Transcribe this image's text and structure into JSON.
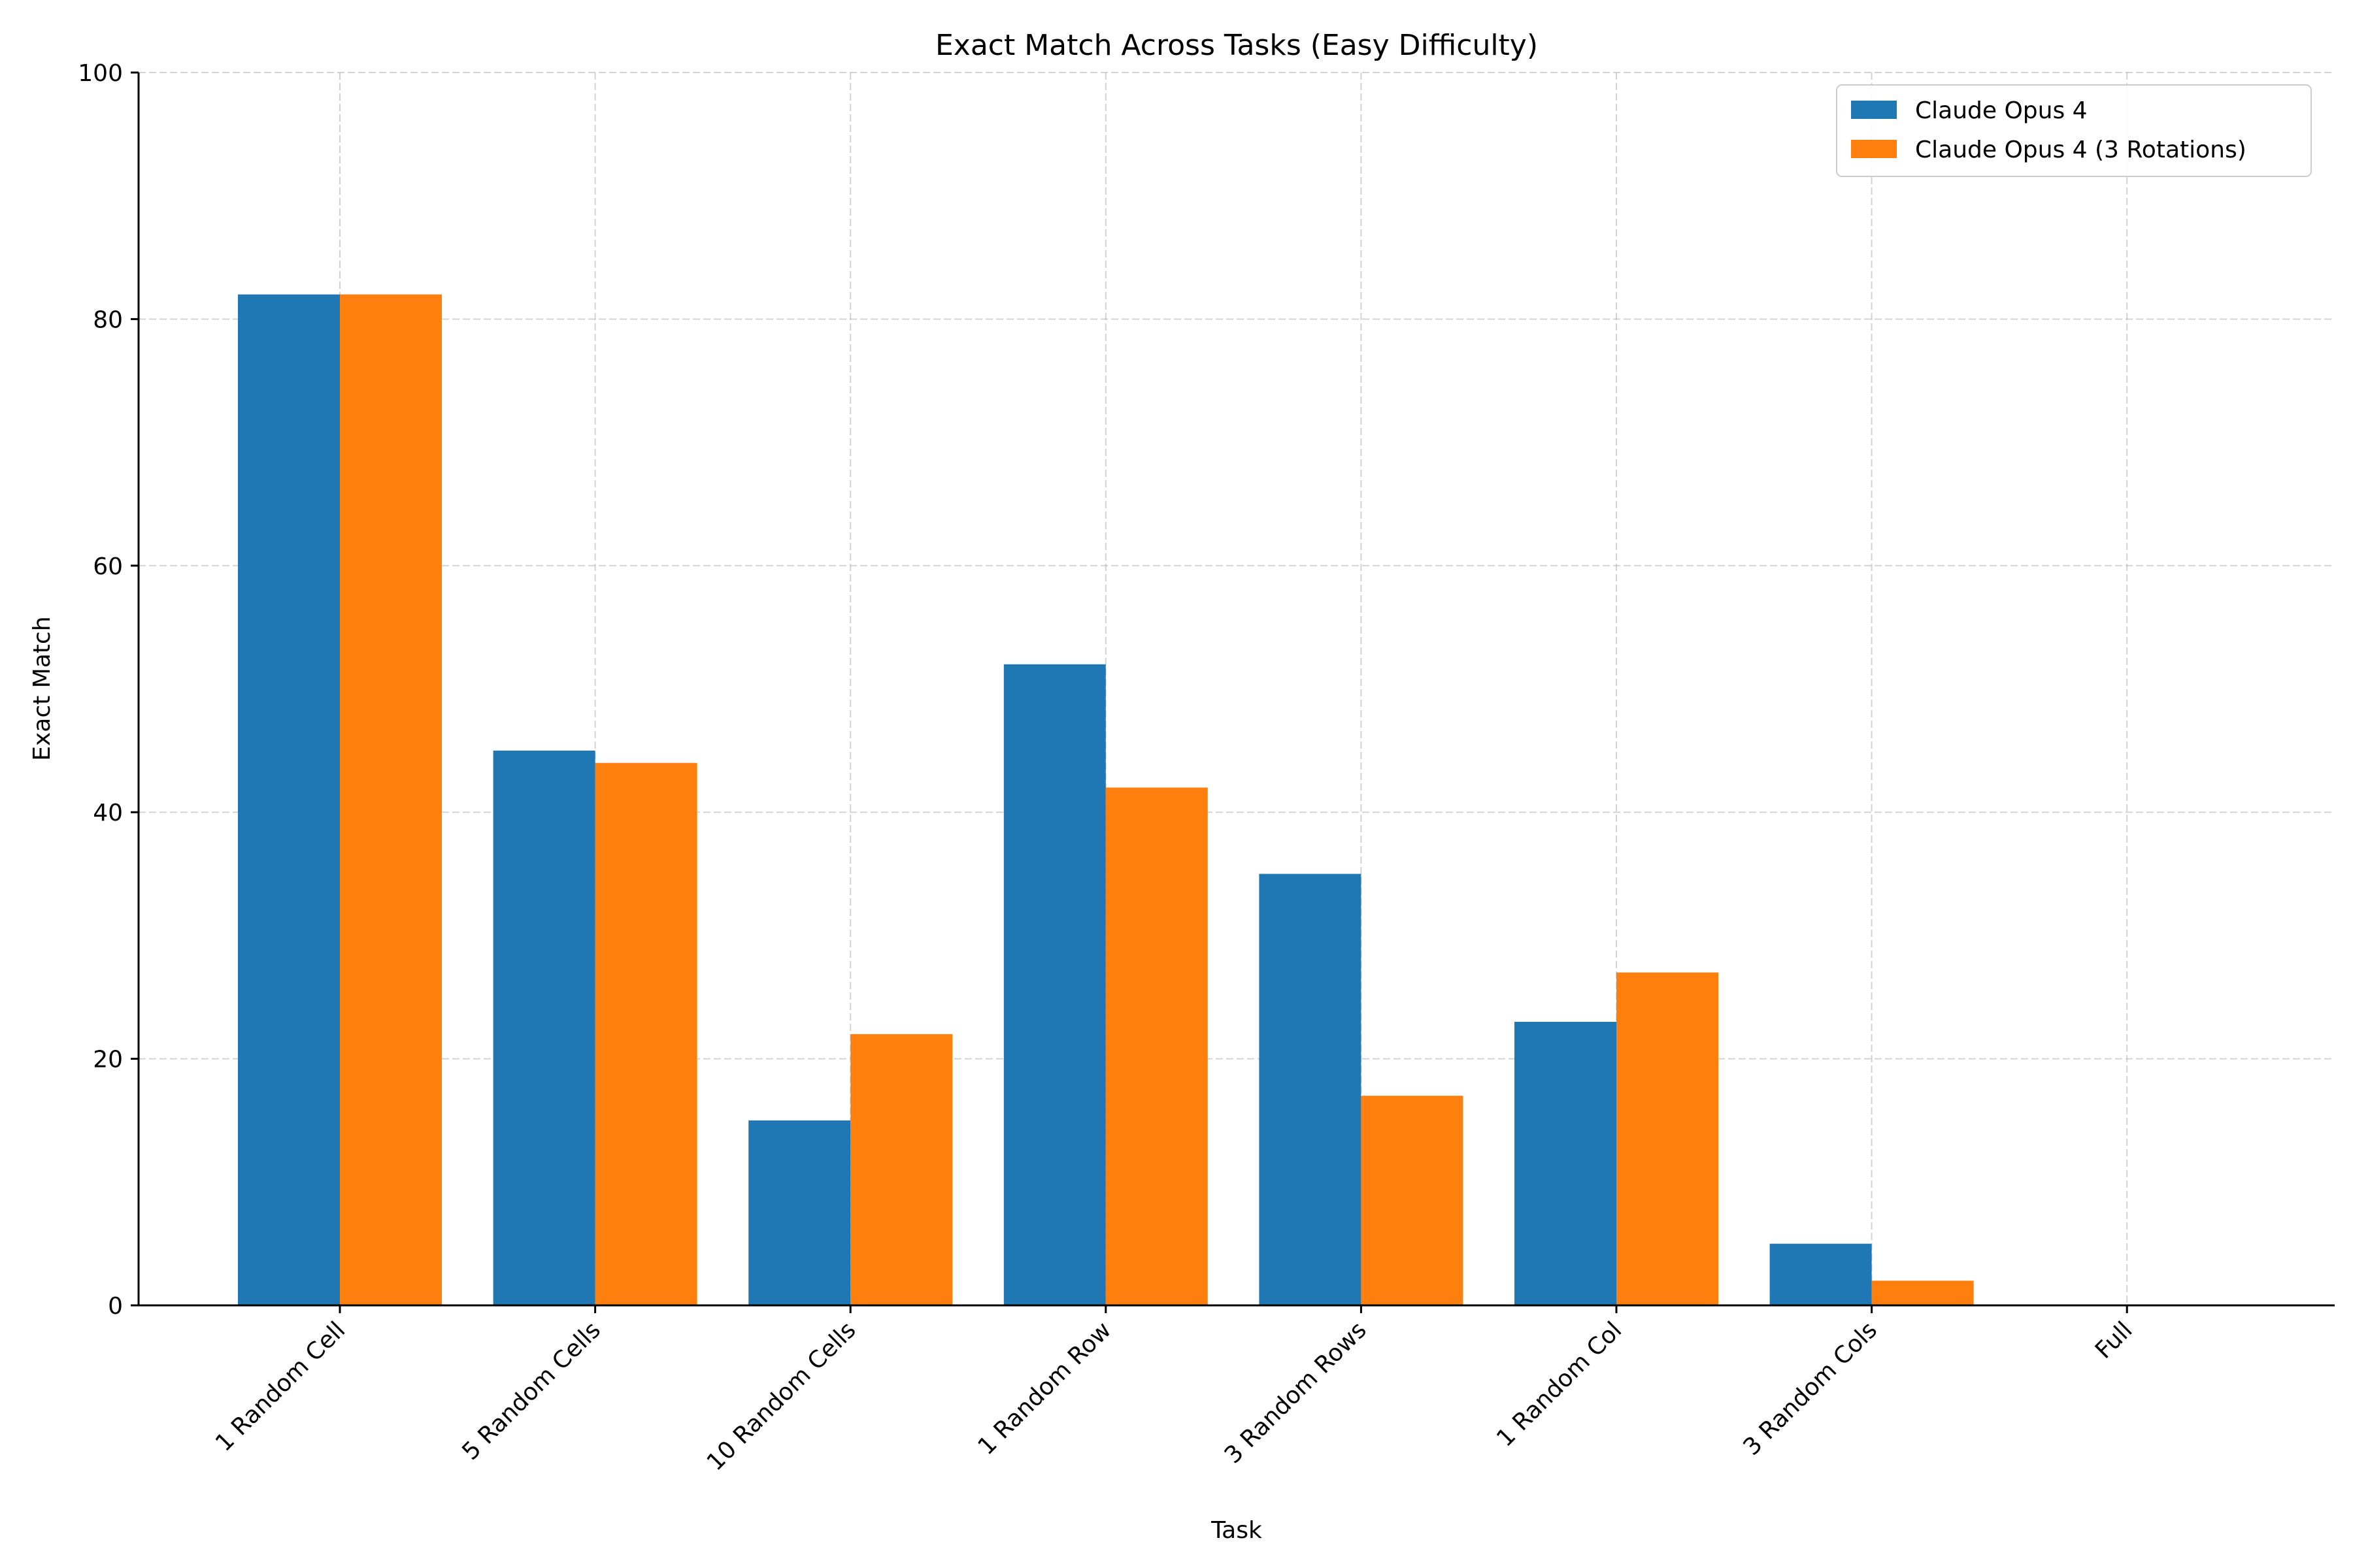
{
  "chart_data": {
    "type": "bar",
    "title": "Exact Match Across Tasks (Easy Difficulty)",
    "xlabel": "Task",
    "ylabel": "Exact Match",
    "ylim": [
      0,
      100
    ],
    "yticks": [
      "0",
      "20",
      "40",
      "60",
      "80",
      "100"
    ],
    "categories": [
      "1 Random Cell",
      "5 Random Cells",
      "10 Random Cells",
      "1 Random Row",
      "3 Random Rows",
      "1 Random Col",
      "3 Random Cols",
      "Full"
    ],
    "series": [
      {
        "name": "Claude Opus 4",
        "color": "#1f77b4",
        "values": [
          82,
          45,
          15,
          52,
          35,
          23,
          5,
          0
        ]
      },
      {
        "name": "Claude Opus 4 (3 Rotations)",
        "color": "#ff7f0e",
        "values": [
          82,
          44,
          22,
          42,
          17,
          27,
          2,
          0
        ]
      }
    ],
    "grid": true,
    "legend_position": "top-right"
  }
}
